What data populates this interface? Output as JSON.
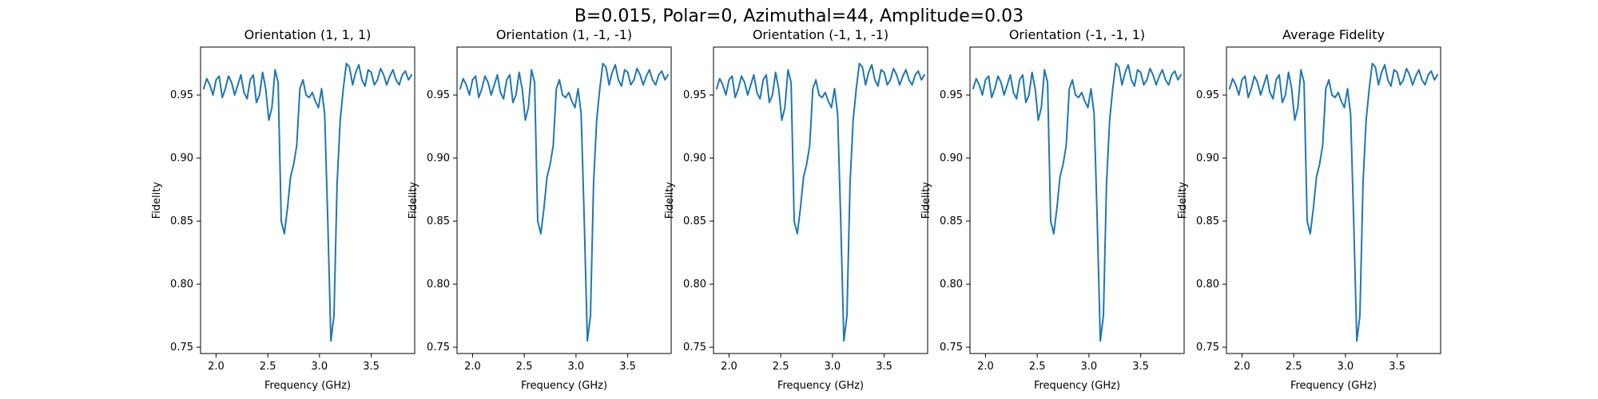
{
  "figure": {
    "suptitle": "B=0.015, Polar=0, Azimuthal=44, Amplitude=0.03",
    "line_color": "#1f77b4"
  },
  "chart_data": [
    {
      "type": "line",
      "title": "Orientation (1, 1, 1)",
      "xlabel": "Frequency (GHz)",
      "ylabel": "Fidelity",
      "xlim": [
        1.85,
        3.92
      ],
      "ylim": [
        0.745,
        0.988
      ],
      "xticks": [
        2.0,
        2.5,
        3.0,
        3.5
      ],
      "xtick_labels": [
        "2.0",
        "2.5",
        "3.0",
        "3.5"
      ],
      "yticks": [
        0.75,
        0.8,
        0.85,
        0.9,
        0.95
      ],
      "ytick_labels": [
        "0.75",
        "0.80",
        "0.85",
        "0.90",
        "0.95"
      ],
      "series": [
        {
          "x": [
            1.88,
            1.91,
            1.94,
            1.97,
            2.0,
            2.03,
            2.06,
            2.09,
            2.12,
            2.15,
            2.18,
            2.21,
            2.24,
            2.27,
            2.3,
            2.33,
            2.36,
            2.39,
            2.42,
            2.45,
            2.48,
            2.51,
            2.54,
            2.57,
            2.6,
            2.63,
            2.66,
            2.69,
            2.72,
            2.75,
            2.78,
            2.81,
            2.84,
            2.87,
            2.9,
            2.93,
            2.96,
            2.99,
            3.02,
            3.05,
            3.08,
            3.11,
            3.14,
            3.17,
            3.2,
            3.23,
            3.26,
            3.29,
            3.32,
            3.35,
            3.38,
            3.41,
            3.44,
            3.47,
            3.5,
            3.53,
            3.56,
            3.59,
            3.62,
            3.65,
            3.68,
            3.71,
            3.74,
            3.77,
            3.8,
            3.83,
            3.86,
            3.89
          ],
          "y": [
            0.955,
            0.963,
            0.958,
            0.95,
            0.962,
            0.965,
            0.948,
            0.955,
            0.965,
            0.96,
            0.95,
            0.958,
            0.966,
            0.952,
            0.947,
            0.962,
            0.966,
            0.944,
            0.95,
            0.968,
            0.955,
            0.93,
            0.94,
            0.97,
            0.96,
            0.85,
            0.84,
            0.86,
            0.885,
            0.895,
            0.91,
            0.955,
            0.962,
            0.95,
            0.948,
            0.952,
            0.945,
            0.94,
            0.955,
            0.935,
            0.85,
            0.755,
            0.775,
            0.88,
            0.93,
            0.955,
            0.975,
            0.972,
            0.958,
            0.968,
            0.974,
            0.962,
            0.957,
            0.97,
            0.968,
            0.958,
            0.962,
            0.971,
            0.966,
            0.958,
            0.965,
            0.97,
            0.962,
            0.958,
            0.966,
            0.969,
            0.962,
            0.966
          ]
        }
      ]
    },
    {
      "type": "line",
      "title": "Orientation (1, -1, -1)",
      "xlabel": "Frequency (GHz)",
      "ylabel": "Fidelity",
      "xlim": [
        1.85,
        3.92
      ],
      "ylim": [
        0.745,
        0.988
      ],
      "xticks": [
        2.0,
        2.5,
        3.0,
        3.5
      ],
      "xtick_labels": [
        "2.0",
        "2.5",
        "3.0",
        "3.5"
      ],
      "yticks": [
        0.75,
        0.8,
        0.85,
        0.9,
        0.95
      ],
      "ytick_labels": [
        "0.75",
        "0.80",
        "0.85",
        "0.90",
        "0.95"
      ],
      "series": [
        {
          "x": [
            1.88,
            1.91,
            1.94,
            1.97,
            2.0,
            2.03,
            2.06,
            2.09,
            2.12,
            2.15,
            2.18,
            2.21,
            2.24,
            2.27,
            2.3,
            2.33,
            2.36,
            2.39,
            2.42,
            2.45,
            2.48,
            2.51,
            2.54,
            2.57,
            2.6,
            2.63,
            2.66,
            2.69,
            2.72,
            2.75,
            2.78,
            2.81,
            2.84,
            2.87,
            2.9,
            2.93,
            2.96,
            2.99,
            3.02,
            3.05,
            3.08,
            3.11,
            3.14,
            3.17,
            3.2,
            3.23,
            3.26,
            3.29,
            3.32,
            3.35,
            3.38,
            3.41,
            3.44,
            3.47,
            3.5,
            3.53,
            3.56,
            3.59,
            3.62,
            3.65,
            3.68,
            3.71,
            3.74,
            3.77,
            3.8,
            3.83,
            3.86,
            3.89
          ],
          "y": [
            0.955,
            0.963,
            0.958,
            0.95,
            0.962,
            0.965,
            0.948,
            0.955,
            0.965,
            0.96,
            0.95,
            0.958,
            0.966,
            0.952,
            0.947,
            0.962,
            0.966,
            0.944,
            0.95,
            0.968,
            0.955,
            0.93,
            0.94,
            0.97,
            0.96,
            0.85,
            0.84,
            0.86,
            0.885,
            0.895,
            0.91,
            0.955,
            0.962,
            0.95,
            0.948,
            0.952,
            0.945,
            0.94,
            0.955,
            0.935,
            0.85,
            0.755,
            0.775,
            0.88,
            0.93,
            0.955,
            0.975,
            0.972,
            0.958,
            0.968,
            0.974,
            0.962,
            0.957,
            0.97,
            0.968,
            0.958,
            0.962,
            0.971,
            0.966,
            0.958,
            0.965,
            0.97,
            0.962,
            0.958,
            0.966,
            0.969,
            0.962,
            0.966
          ]
        }
      ]
    },
    {
      "type": "line",
      "title": "Orientation (-1, 1, -1)",
      "xlabel": "Frequency (GHz)",
      "ylabel": "Fidelity",
      "xlim": [
        1.85,
        3.92
      ],
      "ylim": [
        0.745,
        0.988
      ],
      "xticks": [
        2.0,
        2.5,
        3.0,
        3.5
      ],
      "xtick_labels": [
        "2.0",
        "2.5",
        "3.0",
        "3.5"
      ],
      "yticks": [
        0.75,
        0.8,
        0.85,
        0.9,
        0.95
      ],
      "ytick_labels": [
        "0.75",
        "0.80",
        "0.85",
        "0.90",
        "0.95"
      ],
      "series": [
        {
          "x": [
            1.88,
            1.91,
            1.94,
            1.97,
            2.0,
            2.03,
            2.06,
            2.09,
            2.12,
            2.15,
            2.18,
            2.21,
            2.24,
            2.27,
            2.3,
            2.33,
            2.36,
            2.39,
            2.42,
            2.45,
            2.48,
            2.51,
            2.54,
            2.57,
            2.6,
            2.63,
            2.66,
            2.69,
            2.72,
            2.75,
            2.78,
            2.81,
            2.84,
            2.87,
            2.9,
            2.93,
            2.96,
            2.99,
            3.02,
            3.05,
            3.08,
            3.11,
            3.14,
            3.17,
            3.2,
            3.23,
            3.26,
            3.29,
            3.32,
            3.35,
            3.38,
            3.41,
            3.44,
            3.47,
            3.5,
            3.53,
            3.56,
            3.59,
            3.62,
            3.65,
            3.68,
            3.71,
            3.74,
            3.77,
            3.8,
            3.83,
            3.86,
            3.89
          ],
          "y": [
            0.955,
            0.963,
            0.958,
            0.95,
            0.962,
            0.965,
            0.948,
            0.955,
            0.965,
            0.96,
            0.95,
            0.958,
            0.966,
            0.952,
            0.947,
            0.962,
            0.966,
            0.944,
            0.95,
            0.968,
            0.955,
            0.93,
            0.94,
            0.97,
            0.96,
            0.85,
            0.84,
            0.86,
            0.885,
            0.895,
            0.91,
            0.955,
            0.962,
            0.95,
            0.948,
            0.952,
            0.945,
            0.94,
            0.955,
            0.935,
            0.85,
            0.755,
            0.775,
            0.88,
            0.93,
            0.955,
            0.975,
            0.972,
            0.958,
            0.968,
            0.974,
            0.962,
            0.957,
            0.97,
            0.968,
            0.958,
            0.962,
            0.971,
            0.966,
            0.958,
            0.965,
            0.97,
            0.962,
            0.958,
            0.966,
            0.969,
            0.962,
            0.966
          ]
        }
      ]
    },
    {
      "type": "line",
      "title": "Orientation (-1, -1, 1)",
      "xlabel": "Frequency (GHz)",
      "ylabel": "Fidelity",
      "xlim": [
        1.85,
        3.92
      ],
      "ylim": [
        0.745,
        0.988
      ],
      "xticks": [
        2.0,
        2.5,
        3.0,
        3.5
      ],
      "xtick_labels": [
        "2.0",
        "2.5",
        "3.0",
        "3.5"
      ],
      "yticks": [
        0.75,
        0.8,
        0.85,
        0.9,
        0.95
      ],
      "ytick_labels": [
        "0.75",
        "0.80",
        "0.85",
        "0.90",
        "0.95"
      ],
      "series": [
        {
          "x": [
            1.88,
            1.91,
            1.94,
            1.97,
            2.0,
            2.03,
            2.06,
            2.09,
            2.12,
            2.15,
            2.18,
            2.21,
            2.24,
            2.27,
            2.3,
            2.33,
            2.36,
            2.39,
            2.42,
            2.45,
            2.48,
            2.51,
            2.54,
            2.57,
            2.6,
            2.63,
            2.66,
            2.69,
            2.72,
            2.75,
            2.78,
            2.81,
            2.84,
            2.87,
            2.9,
            2.93,
            2.96,
            2.99,
            3.02,
            3.05,
            3.08,
            3.11,
            3.14,
            3.17,
            3.2,
            3.23,
            3.26,
            3.29,
            3.32,
            3.35,
            3.38,
            3.41,
            3.44,
            3.47,
            3.5,
            3.53,
            3.56,
            3.59,
            3.62,
            3.65,
            3.68,
            3.71,
            3.74,
            3.77,
            3.8,
            3.83,
            3.86,
            3.89
          ],
          "y": [
            0.955,
            0.963,
            0.958,
            0.95,
            0.962,
            0.965,
            0.948,
            0.955,
            0.965,
            0.96,
            0.95,
            0.958,
            0.966,
            0.952,
            0.947,
            0.962,
            0.966,
            0.944,
            0.95,
            0.968,
            0.955,
            0.93,
            0.94,
            0.97,
            0.96,
            0.85,
            0.84,
            0.86,
            0.885,
            0.895,
            0.91,
            0.955,
            0.962,
            0.95,
            0.948,
            0.952,
            0.945,
            0.94,
            0.955,
            0.935,
            0.85,
            0.755,
            0.775,
            0.88,
            0.93,
            0.955,
            0.975,
            0.972,
            0.958,
            0.968,
            0.974,
            0.962,
            0.957,
            0.97,
            0.968,
            0.958,
            0.962,
            0.971,
            0.966,
            0.958,
            0.965,
            0.97,
            0.962,
            0.958,
            0.966,
            0.969,
            0.962,
            0.966
          ]
        }
      ]
    },
    {
      "type": "line",
      "title": "Average Fidelity",
      "xlabel": "Frequency (GHz)",
      "ylabel": "Fidelity",
      "xlim": [
        1.85,
        3.92
      ],
      "ylim": [
        0.745,
        0.988
      ],
      "xticks": [
        2.0,
        2.5,
        3.0,
        3.5
      ],
      "xtick_labels": [
        "2.0",
        "2.5",
        "3.0",
        "3.5"
      ],
      "yticks": [
        0.75,
        0.8,
        0.85,
        0.9,
        0.95
      ],
      "ytick_labels": [
        "0.75",
        "0.80",
        "0.85",
        "0.90",
        "0.95"
      ],
      "series": [
        {
          "x": [
            1.88,
            1.91,
            1.94,
            1.97,
            2.0,
            2.03,
            2.06,
            2.09,
            2.12,
            2.15,
            2.18,
            2.21,
            2.24,
            2.27,
            2.3,
            2.33,
            2.36,
            2.39,
            2.42,
            2.45,
            2.48,
            2.51,
            2.54,
            2.57,
            2.6,
            2.63,
            2.66,
            2.69,
            2.72,
            2.75,
            2.78,
            2.81,
            2.84,
            2.87,
            2.9,
            2.93,
            2.96,
            2.99,
            3.02,
            3.05,
            3.08,
            3.11,
            3.14,
            3.17,
            3.2,
            3.23,
            3.26,
            3.29,
            3.32,
            3.35,
            3.38,
            3.41,
            3.44,
            3.47,
            3.5,
            3.53,
            3.56,
            3.59,
            3.62,
            3.65,
            3.68,
            3.71,
            3.74,
            3.77,
            3.8,
            3.83,
            3.86,
            3.89
          ],
          "y": [
            0.955,
            0.963,
            0.958,
            0.95,
            0.962,
            0.965,
            0.948,
            0.955,
            0.965,
            0.96,
            0.95,
            0.958,
            0.966,
            0.952,
            0.947,
            0.962,
            0.966,
            0.944,
            0.95,
            0.968,
            0.955,
            0.93,
            0.94,
            0.97,
            0.96,
            0.85,
            0.84,
            0.86,
            0.885,
            0.895,
            0.91,
            0.955,
            0.962,
            0.95,
            0.948,
            0.952,
            0.945,
            0.94,
            0.955,
            0.935,
            0.85,
            0.755,
            0.775,
            0.88,
            0.93,
            0.955,
            0.975,
            0.972,
            0.958,
            0.968,
            0.974,
            0.962,
            0.957,
            0.97,
            0.968,
            0.958,
            0.962,
            0.971,
            0.966,
            0.958,
            0.965,
            0.97,
            0.962,
            0.958,
            0.966,
            0.969,
            0.962,
            0.966
          ]
        }
      ]
    }
  ]
}
